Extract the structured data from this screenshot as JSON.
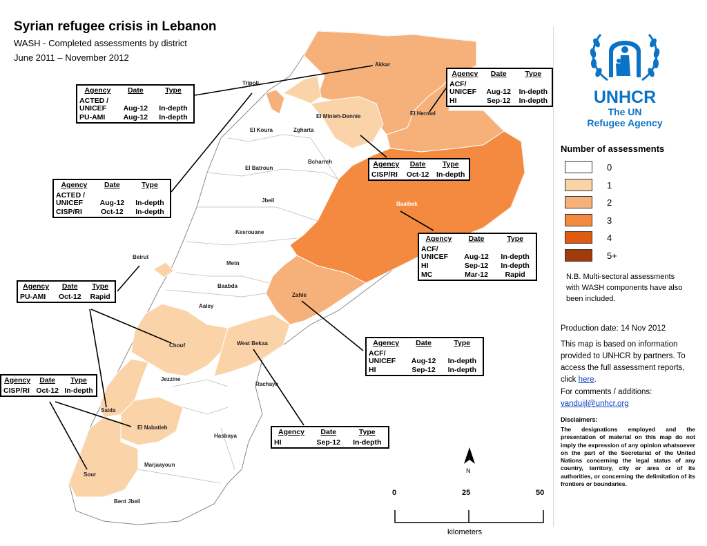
{
  "header": {
    "title": "Syrian refugee crisis in Lebanon",
    "subtitle": "WASH - Completed assessments by district",
    "period": "June 2011 – November 2012"
  },
  "map": {
    "country": "Lebanon",
    "districts": [
      {
        "name": "Akkar",
        "assessments": 2
      },
      {
        "name": "Tripoli",
        "assessments": 2
      },
      {
        "name": "El Minieh-Dennie",
        "assessments": 1
      },
      {
        "name": "El Hermel",
        "assessments": 2
      },
      {
        "name": "El Koura",
        "assessments": 0
      },
      {
        "name": "Zgharta",
        "assessments": 0
      },
      {
        "name": "Bcharreh",
        "assessments": 0
      },
      {
        "name": "El Batroun",
        "assessments": 0
      },
      {
        "name": "Jbeil",
        "assessments": 0
      },
      {
        "name": "Baalbek",
        "assessments": 3
      },
      {
        "name": "Kesrouane",
        "assessments": 0
      },
      {
        "name": "Beirut",
        "assessments": 1
      },
      {
        "name": "Metn",
        "assessments": 0
      },
      {
        "name": "Baabda",
        "assessments": 0
      },
      {
        "name": "Aaley",
        "assessments": 0
      },
      {
        "name": "Zahle",
        "assessments": 2
      },
      {
        "name": "Chouf",
        "assessments": 1
      },
      {
        "name": "West Bekaa",
        "assessments": 1
      },
      {
        "name": "Jezzine",
        "assessments": 0
      },
      {
        "name": "Rachaya",
        "assessments": 0
      },
      {
        "name": "Saida",
        "assessments": 1
      },
      {
        "name": "El Nabatieh",
        "assessments": 1
      },
      {
        "name": "Hasbaya",
        "assessments": 0
      },
      {
        "name": "Marjaayoun",
        "assessments": 0
      },
      {
        "name": "Sour",
        "assessments": 1
      },
      {
        "name": "Bent Jbeil",
        "assessments": 0
      }
    ],
    "north_label": "N"
  },
  "table_headers": {
    "agency": "Agency",
    "date": "Date",
    "type": "Type"
  },
  "assessment_boxes": {
    "akkar": [
      {
        "agency": "ACTED /\nUNICEF",
        "date": "Aug-12",
        "type": "In-depth"
      },
      {
        "agency": "PU-AMI",
        "date": "Aug-12",
        "type": "In-depth"
      }
    ],
    "tripoli": [
      {
        "agency": "ACTED /\nUNICEF",
        "date": "Aug-12",
        "type": "In-depth"
      },
      {
        "agency": "CISP/RI",
        "date": "Oct-12",
        "type": "In-depth"
      }
    ],
    "hermel": [
      {
        "agency": "ACF/\nUNICEF",
        "date": "Aug-12",
        "type": "In-depth"
      },
      {
        "agency": "HI",
        "date": "Sep-12",
        "type": "In-depth"
      }
    ],
    "minieh": [
      {
        "agency": "CISP/RI",
        "date": "Oct-12",
        "type": "In-depth"
      }
    ],
    "baalbek": [
      {
        "agency": "ACF/\nUNICEF",
        "date": "Aug-12",
        "type": "In-depth"
      },
      {
        "agency": "HI",
        "date": "Sep-12",
        "type": "In-depth"
      },
      {
        "agency": "MC",
        "date": "Mar-12",
        "type": "Rapid"
      }
    ],
    "beirut": [
      {
        "agency": "PU-AMI",
        "date": "Oct-12",
        "type": "Rapid"
      }
    ],
    "zahle": [
      {
        "agency": "ACF/\nUNICEF",
        "date": "Aug-12",
        "type": "In-depth"
      },
      {
        "agency": "HI",
        "date": "Sep-12",
        "type": "In-depth"
      }
    ],
    "saida": [
      {
        "agency": "CISP/RI",
        "date": "Oct-12",
        "type": "In-depth"
      }
    ],
    "westbekaa": [
      {
        "agency": "HI",
        "date": "Sep-12",
        "type": "In-depth"
      }
    ]
  },
  "logo": {
    "name": "UNHCR",
    "line1": "The UN",
    "line2": "Refugee Agency",
    "color": "#0b73c6"
  },
  "legend": {
    "title": "Number of assessments",
    "items": [
      {
        "label": "0",
        "color": "#ffffff"
      },
      {
        "label": "1",
        "color": "#fbd3a8"
      },
      {
        "label": "2",
        "color": "#f6b07a"
      },
      {
        "label": "3",
        "color": "#f48a40"
      },
      {
        "label": "4",
        "color": "#e05a10"
      },
      {
        "label": "5+",
        "color": "#a33a0a"
      }
    ]
  },
  "notes": {
    "nb": "N.B. Multi-sectoral assessments with WASH components have also been included.",
    "production_date": "Production date: 14 Nov 2012",
    "info_prefix": "This map is based on information provided to UNHCR by partners. To access the full assessment reports, click ",
    "info_link": "here",
    "info_suffix": ".",
    "contact_label": "For comments / additions:",
    "contact_email": "vanduijl@unhcr.org"
  },
  "disclaimer": {
    "title": "Disclaimers:",
    "text": "The designations employed and the presentation of material on this map do not imply the expression of any opinion whatsoever on the part of the Secretariat of the United Nations concerning the legal status of any country, territory, city or area or of its authorities, or concerning the delimitation of its frontiers or boundaries."
  },
  "scale_bar": {
    "ticks": [
      "0",
      "25",
      "50"
    ],
    "unit": "kilometers"
  }
}
